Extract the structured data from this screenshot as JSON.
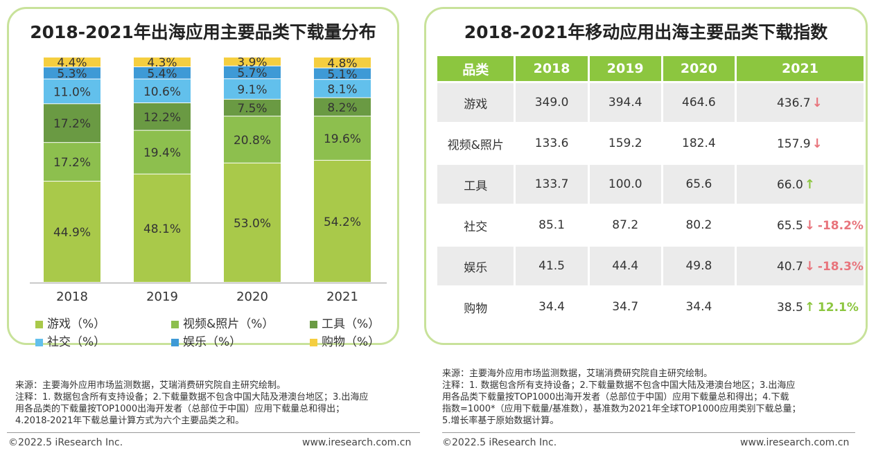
{
  "left": {
    "title": "2018-2021年出海应用主要品类下载量分布",
    "legend": [
      "游戏（%）",
      "视频&照片（%）",
      "工具（%）",
      "社交（%）",
      "娱乐（%）",
      "购物（%）"
    ],
    "note_lines": [
      "来源：主要海外应用市场监测数据，艾瑞消费研究院自主研究绘制。",
      "注释：1. 数据包含所有支持设备；2.下载量数据不包含中国大陆及港澳台地区；3.出海应",
      "用各品类的下载量按TOP1000出海开发者（总部位于中国）应用下载量总和得出；",
      "4.2018-2021年下载总量计算方式为六个主要品类之和。"
    ],
    "footer_left": "©2022.5 iResearch Inc.",
    "footer_right": "www.iresearch.com.cn"
  },
  "right": {
    "title": "2018-2021年移动应用出海主要品类下载指数",
    "header": [
      "品类",
      "2018",
      "2019",
      "2020",
      "2021"
    ],
    "rows": [
      {
        "name": "游戏",
        "v2018": "349.0",
        "v2019": "394.4",
        "v2020": "464.6",
        "v2021": "436.7",
        "trend": "down",
        "growth": ""
      },
      {
        "name": "视频&照片",
        "v2018": "133.6",
        "v2019": "159.2",
        "v2020": "182.4",
        "v2021": "157.9",
        "trend": "down",
        "growth": ""
      },
      {
        "name": "工具",
        "v2018": "133.7",
        "v2019": "100.0",
        "v2020": "65.6",
        "v2021": "66.0",
        "trend": "up",
        "growth": ""
      },
      {
        "name": "社交",
        "v2018": "85.1",
        "v2019": "87.2",
        "v2020": "80.2",
        "v2021": "65.5",
        "trend": "down",
        "growth": "-18.2%"
      },
      {
        "name": "娱乐",
        "v2018": "41.5",
        "v2019": "44.4",
        "v2020": "49.8",
        "v2021": "40.7",
        "trend": "down",
        "growth": "-18.3%"
      },
      {
        "name": "购物",
        "v2018": "34.4",
        "v2019": "34.7",
        "v2020": "34.4",
        "v2021": "38.5",
        "trend": "up",
        "growth": "12.1%"
      }
    ],
    "note_lines": [
      "来源：主要海外应用市场监测数据，艾瑞消费研究院自主研究绘制。",
      "注释：1. 数据包含所有支持设备；2.下载量数据不包含中国大陆及港澳台地区；3.出海应",
      "用各品类下载量按TOP1000出海开发者（总部位于中国）应用下载量总和得出；4.下载",
      "指数=1000*（应用下载量/基准数），基准数为2021年全球TOP1000应用类别下载总量；",
      "5.增长率基于原始数据计算。"
    ],
    "footer_left": "©2022.5 iResearch Inc.",
    "footer_right": "www.iresearch.com.cn"
  },
  "colors": {
    "game": "#a9c94a",
    "video": "#8dbf4e",
    "tool": "#6a9a43",
    "social": "#62c0ec",
    "ent": "#3e9ad6",
    "shop": "#f5ce40",
    "panel_border": "#c8e29a",
    "header_green": "#8cc63f",
    "down_red": "#e8747c",
    "up_green": "#8cc63f"
  },
  "chart_data": [
    {
      "type": "bar",
      "stacked": true,
      "percent": true,
      "title": "2018-2021年出海应用主要品类下载量分布",
      "categories": [
        "2018",
        "2019",
        "2020",
        "2021"
      ],
      "series": [
        {
          "name": "游戏（%）",
          "values": [
            44.9,
            48.1,
            53.0,
            54.2
          ]
        },
        {
          "name": "视频&照片（%）",
          "values": [
            17.2,
            19.4,
            20.8,
            19.6
          ]
        },
        {
          "name": "工具（%）",
          "values": [
            17.2,
            12.2,
            7.5,
            8.2
          ]
        },
        {
          "name": "社交（%）",
          "values": [
            11.0,
            10.6,
            9.1,
            8.1
          ]
        },
        {
          "name": "娱乐（%）",
          "values": [
            5.3,
            5.4,
            5.7,
            5.1
          ]
        },
        {
          "name": "购物（%）",
          "values": [
            4.4,
            4.3,
            3.9,
            4.8
          ]
        }
      ],
      "labels": [
        [
          "44.9%",
          "48.1%",
          "53.0%",
          "54.2%"
        ],
        [
          "17.2%",
          "19.4%",
          "20.8%",
          "19.6%"
        ],
        [
          "17.2%",
          "12.2%",
          "7.5%",
          "8.2%"
        ],
        [
          "11.0%",
          "10.6%",
          "9.1%",
          "8.1%"
        ],
        [
          "5.3%",
          "5.4%",
          "5.7%",
          "5.1%"
        ],
        [
          "4.4%",
          "4.3%",
          "3.9%",
          "4.8%"
        ]
      ],
      "ylim": [
        0,
        100
      ],
      "legend": "bottom"
    },
    {
      "type": "table",
      "title": "2018-2021年移动应用出海主要品类下载指数",
      "columns": [
        "品类",
        "2018",
        "2019",
        "2020",
        "2021"
      ],
      "rows": [
        [
          "游戏",
          349.0,
          394.4,
          464.6,
          436.7
        ],
        [
          "视频&照片",
          133.6,
          159.2,
          182.4,
          157.9
        ],
        [
          "工具",
          133.7,
          100.0,
          65.6,
          66.0
        ],
        [
          "社交",
          85.1,
          87.2,
          80.2,
          65.5
        ],
        [
          "娱乐",
          41.5,
          44.4,
          49.8,
          40.7
        ],
        [
          "购物",
          34.4,
          34.7,
          34.4,
          38.5
        ]
      ],
      "growth_2021": {
        "社交": "-18.2%",
        "娱乐": "-18.3%",
        "购物": "12.1%"
      }
    }
  ]
}
